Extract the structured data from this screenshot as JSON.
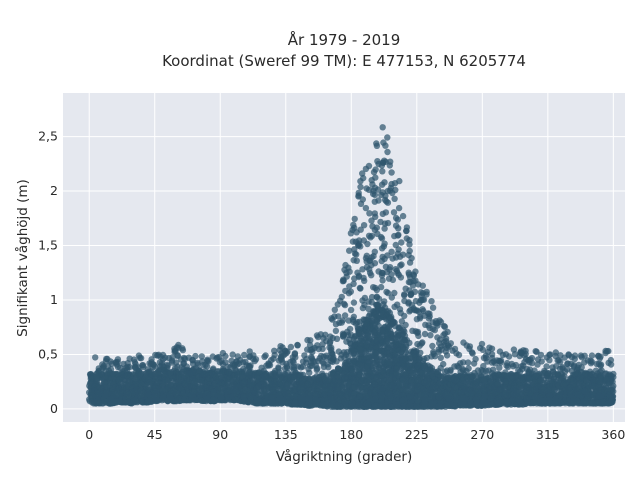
{
  "chart_data": {
    "type": "scatter",
    "title_line1": "År 1979 - 2019",
    "title_line2": "Koordinat (Sweref 99 TM): E 477153, N 6205774",
    "xlabel": "Vågriktning (grader)",
    "ylabel": "Signifikant våghöjd (m)",
    "xlim": [
      -18,
      368
    ],
    "ylim": [
      -0.12,
      2.9
    ],
    "xticks": [
      0,
      45,
      90,
      135,
      180,
      225,
      270,
      315,
      360
    ],
    "xtick_labels": [
      "0",
      "45",
      "90",
      "135",
      "180",
      "225",
      "270",
      "315",
      "360"
    ],
    "yticks": [
      0,
      0.5,
      1,
      1.5,
      2,
      2.5
    ],
    "ytick_labels": [
      "0",
      "0,5",
      "1",
      "1,5",
      "2",
      "2,5"
    ],
    "grid": true,
    "colors": {
      "marker": "#2f566e",
      "plot_bg": "#e5e8ef",
      "grid": "#ffffff"
    },
    "series": [
      {
        "x": [
          0,
          5,
          10,
          15,
          20,
          25,
          30,
          35,
          40,
          45,
          50,
          55,
          60,
          65,
          70,
          75,
          80,
          85,
          90,
          95,
          100,
          105,
          110,
          115,
          120,
          125,
          130,
          135,
          140,
          145,
          150,
          155,
          160,
          165,
          170,
          175,
          180,
          185,
          190,
          195,
          200,
          205,
          210,
          215,
          220,
          225,
          230,
          235,
          240,
          245,
          250,
          255,
          260,
          265,
          270,
          275,
          280,
          285,
          290,
          295,
          300,
          305,
          310,
          315,
          320,
          325,
          330,
          335,
          340,
          345,
          350,
          355,
          360
        ],
        "y_max": [
          0.45,
          0.48,
          0.5,
          0.45,
          0.5,
          0.45,
          0.55,
          0.48,
          0.5,
          0.5,
          0.5,
          0.5,
          0.6,
          0.55,
          0.5,
          0.5,
          0.5,
          0.5,
          0.52,
          0.5,
          0.5,
          0.5,
          0.55,
          0.52,
          0.5,
          0.52,
          0.6,
          0.55,
          0.58,
          0.6,
          0.65,
          0.68,
          0.7,
          0.8,
          0.95,
          1.25,
          1.7,
          2.05,
          2.3,
          2.55,
          2.78,
          2.5,
          2.25,
          2.0,
          1.6,
          1.35,
          1.15,
          1.0,
          0.85,
          0.75,
          0.65,
          0.62,
          0.6,
          0.6,
          0.6,
          0.58,
          0.58,
          0.55,
          0.55,
          0.55,
          0.55,
          0.55,
          0.52,
          0.52,
          0.52,
          0.55,
          0.5,
          0.5,
          0.5,
          0.5,
          0.5,
          0.55,
          0.5
        ],
        "y_min": [
          0.05,
          0.05,
          0.05,
          0.05,
          0.06,
          0.06,
          0.05,
          0.06,
          0.06,
          0.07,
          0.08,
          0.07,
          0.07,
          0.08,
          0.08,
          0.08,
          0.07,
          0.07,
          0.08,
          0.08,
          0.08,
          0.07,
          0.06,
          0.05,
          0.05,
          0.05,
          0.05,
          0.05,
          0.04,
          0.04,
          0.03,
          0.03,
          0.03,
          0.02,
          0.02,
          0.02,
          0.02,
          0.02,
          0.02,
          0.02,
          0.02,
          0.02,
          0.02,
          0.02,
          0.02,
          0.02,
          0.02,
          0.02,
          0.02,
          0.02,
          0.02,
          0.03,
          0.03,
          0.03,
          0.03,
          0.03,
          0.04,
          0.04,
          0.04,
          0.04,
          0.04,
          0.05,
          0.05,
          0.05,
          0.05,
          0.05,
          0.05,
          0.05,
          0.05,
          0.05,
          0.05,
          0.05,
          0.05
        ]
      }
    ]
  }
}
